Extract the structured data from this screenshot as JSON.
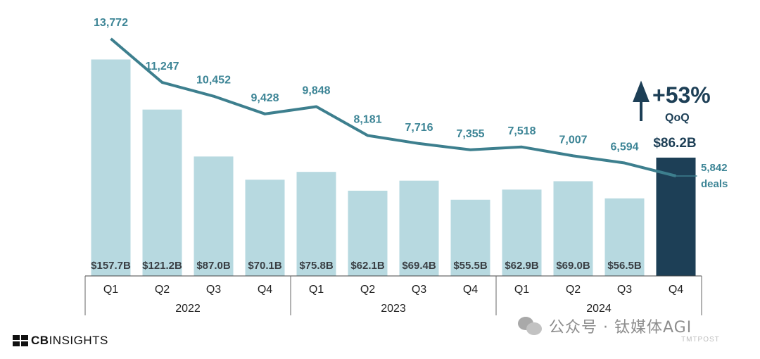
{
  "chart_data": {
    "type": "bar",
    "subtype": "bar-with-line-overlay",
    "categories": [
      "Q1",
      "Q2",
      "Q3",
      "Q4",
      "Q1",
      "Q2",
      "Q3",
      "Q4",
      "Q1",
      "Q2",
      "Q3",
      "Q4"
    ],
    "groups": [
      {
        "label": "2022",
        "span": 4
      },
      {
        "label": "2023",
        "span": 4
      },
      {
        "label": "2024",
        "span": 4
      }
    ],
    "series": [
      {
        "name": "Funding ($B)",
        "kind": "bar",
        "values": [
          157.7,
          121.2,
          87.0,
          70.1,
          75.8,
          62.1,
          69.4,
          55.5,
          62.9,
          69.0,
          56.5,
          86.2
        ],
        "labels": [
          "$157.7B",
          "$121.2B",
          "$87.0B",
          "$70.1B",
          "$75.8B",
          "$62.1B",
          "$69.4B",
          "$55.5B",
          "$62.9B",
          "$69.0B",
          "$56.5B",
          ""
        ],
        "color": "#b7d9e0",
        "highlight_index": 11,
        "highlight_color": "#1d3f56"
      },
      {
        "name": "Deals",
        "kind": "line",
        "values": [
          13772,
          11247,
          10452,
          9428,
          9848,
          8181,
          7716,
          7355,
          7518,
          7007,
          6594,
          5842
        ],
        "labels": [
          "13,772",
          "11,247",
          "10,452",
          "9,428",
          "9,848",
          "8,181",
          "7,716",
          "7,355",
          "7,518",
          "7,007",
          "6,594",
          ""
        ],
        "color": "#3d7f8e",
        "ylim": [
          0,
          14000
        ]
      }
    ],
    "bar_ylim": [
      0,
      160
    ],
    "highlight_label": "$86.2B",
    "annotation": {
      "big": "+53%",
      "small": "QoQ"
    },
    "last_point_label": {
      "value": "5,842",
      "unit": "deals"
    },
    "title": "",
    "xlabel": "",
    "ylabel": ""
  },
  "footer": {
    "logo_bold": "CB",
    "logo_light": "INSIGHTS",
    "watermark": "公众号 · 钛媒体AGI",
    "watermark_sub": "TMTPOST"
  }
}
